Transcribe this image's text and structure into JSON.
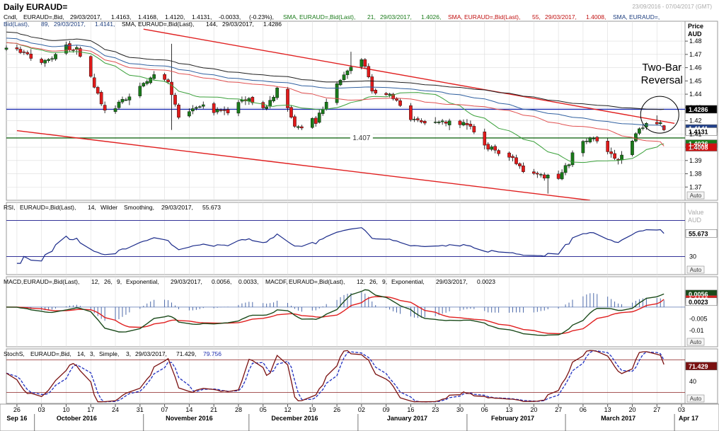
{
  "window": {
    "title": "Daily EURAUD=",
    "date_range": "23/09/2016 - 07/04/2017 (GMT)"
  },
  "colors": {
    "background": "#ffffff",
    "grid": "#dcdcdc",
    "candle_up": "#1a7a1a",
    "candle_down": "#e01a1a",
    "sma21": "#3aa03a",
    "sma55": "#e05050",
    "sma89": "#3060a0",
    "sma144": "#202020",
    "trend_red": "#e02020",
    "level_blue": "#1f2fb0",
    "level_green": "#1a6a1a",
    "rsi": "#1a2a8a",
    "macd": "#1a4a1a",
    "signal": "#e02020",
    "hist": "#3a5aa0",
    "stoch_k": "#7a1010",
    "stoch_d": "#2030c0"
  },
  "chart_data": [
    {
      "type": "candlestick",
      "panel": "price",
      "legend": [
        {
          "text": "Cndl, EURAUD=, Bid, 29/03/2017, 1.4163, 1.4168, 1.4120, 1.4131, -0.0033, (-0.23%),",
          "color": "#000000"
        },
        {
          "text": "SMA, EURAUD=, Bid(Last), 21, 29/03/2017, 1.4026,",
          "color": "#1a7a1a"
        },
        {
          "text": "SMA, EURAUD=, Bid(Last), 55, 29/03/2017, 1.4008,",
          "color": "#c01010"
        },
        {
          "text": "SMA, EURAUD=, Bid(Last), 89, 29/03/2017, 1.4141,",
          "color": "#204080"
        },
        {
          "text": "SMA, EURAUD=, Bid(Last), 144, 29/03/2017, 1.4286",
          "color": "#000000"
        }
      ],
      "y_axis_title": [
        "Price",
        "AUD"
      ],
      "ylim": [
        1.36,
        1.495
      ],
      "y_ticks": [
        1.37,
        1.38,
        1.39,
        1.4,
        1.41,
        1.42,
        1.43,
        1.44,
        1.45,
        1.46,
        1.47,
        1.48
      ],
      "y_tick_labels": [
        "1.37",
        "1.38",
        "1.39",
        "1.40",
        "1.41",
        "1.42",
        "1.43",
        "1.44",
        "1.45",
        "1.46",
        "1.47",
        "1.48"
      ],
      "horizontal_levels": [
        {
          "name": "resistance",
          "value": 1.4286,
          "color": "#1f2fb0"
        },
        {
          "name": "support",
          "value": 1.407,
          "color": "#1a6a1a",
          "label": "1.407",
          "label_date": "2017-01-02"
        }
      ],
      "trendlines": [
        {
          "name": "upper-channel",
          "from": [
            "2016-11-01",
            1.489
          ],
          "to": [
            "2017-04-01",
            1.418
          ],
          "color": "#e02020"
        },
        {
          "name": "lower-channel",
          "from": [
            "2016-09-26",
            1.4125
          ],
          "to": [
            "2017-03-08",
            1.36
          ],
          "color": "#e02020"
        }
      ],
      "value_badges": [
        {
          "text": "1.4286",
          "value": 1.4286,
          "bg": "#000000",
          "fg": "#ffffff"
        },
        {
          "text": "1.4141",
          "value": 1.4141,
          "bg": "#20408a",
          "fg": "#ffffff"
        },
        {
          "text": "1.4131",
          "value": 1.4131,
          "bg": "#ffffff",
          "fg": "#000000"
        },
        {
          "text": "1.4026",
          "value": 1.4026,
          "bg": "#1a7a1a",
          "fg": "#ffffff"
        },
        {
          "text": "1.4008",
          "value": 1.4008,
          "bg": "#d01010",
          "fg": "#ffffff"
        }
      ],
      "annotation": {
        "lines": [
          "Two-Bar",
          "Reversal"
        ],
        "date": "2017-03-27",
        "value": 1.4245
      },
      "anchors": [
        [
          "2016-09-26",
          1.473
        ],
        [
          "2016-10-03",
          1.462
        ],
        [
          "2016-10-10",
          1.476
        ],
        [
          "2016-10-14",
          1.47
        ],
        [
          "2016-10-21",
          1.428
        ],
        [
          "2016-10-28",
          1.438
        ],
        [
          "2016-11-04",
          1.456
        ],
        [
          "2016-11-08",
          1.448
        ],
        [
          "2016-11-11",
          1.423
        ],
        [
          "2016-11-17",
          1.432
        ],
        [
          "2016-11-23",
          1.425
        ],
        [
          "2016-11-29",
          1.436
        ],
        [
          "2016-12-06",
          1.43
        ],
        [
          "2016-12-09",
          1.442
        ],
        [
          "2016-12-15",
          1.415
        ],
        [
          "2016-12-20",
          1.42
        ],
        [
          "2016-12-27",
          1.452
        ],
        [
          "2017-01-02",
          1.465
        ],
        [
          "2017-01-06",
          1.437
        ],
        [
          "2017-01-10",
          1.44
        ],
        [
          "2017-01-16",
          1.42
        ],
        [
          "2017-01-24",
          1.418
        ],
        [
          "2017-01-31",
          1.42
        ],
        [
          "2017-02-06",
          1.401
        ],
        [
          "2017-02-13",
          1.393
        ],
        [
          "2017-02-17",
          1.383
        ],
        [
          "2017-02-22",
          1.379
        ],
        [
          "2017-02-27",
          1.378
        ],
        [
          "2017-03-03",
          1.394
        ],
        [
          "2017-03-08",
          1.409
        ],
        [
          "2017-03-13",
          1.397
        ],
        [
          "2017-03-17",
          1.392
        ],
        [
          "2017-03-22",
          1.414
        ],
        [
          "2017-03-27",
          1.418
        ],
        [
          "2017-03-29",
          1.4131
        ]
      ],
      "last_candle": {
        "date": "2017-03-29",
        "open": 1.4163,
        "high": 1.4168,
        "low": 1.412,
        "close": 1.4131
      },
      "sma": [
        {
          "name": "SMA 21",
          "period": 21,
          "color": "#3aa03a",
          "last": 1.4026
        },
        {
          "name": "SMA 55",
          "period": 55,
          "color": "#e05050",
          "last": 1.4008
        },
        {
          "name": "SMA 89",
          "period": 89,
          "color": "#3060a0",
          "last": 1.4141
        },
        {
          "name": "SMA 144",
          "period": 144,
          "color": "#202020",
          "last": 1.4286
        }
      ]
    },
    {
      "type": "line",
      "panel": "rsi",
      "legend": [
        {
          "text": "RSI, EURAUD=, Bid(Last), 14, Wilder Smoothing, 29/03/2017, 55.673",
          "color": "#000000"
        }
      ],
      "y_axis_title": [
        "Value",
        "AUD"
      ],
      "ylim": [
        10,
        90
      ],
      "y_ticks": [
        30
      ],
      "y_tick_labels": [
        "30"
      ],
      "bands": [
        30,
        70
      ],
      "last": 55.673,
      "badge": {
        "text": "55.673",
        "bg": "#ffffff",
        "fg": "#000000"
      }
    },
    {
      "type": "line",
      "panel": "macd",
      "legend": [
        {
          "text": "MACD, EURAUD=, Bid(Last), 12, 26, 9, Exponential, 29/03/2017, 0.0056, 0.0033, MACDF, EURAUD=, Bid(Last), 12, 26, 9, Exponential, 29/03/2017, 0.0023",
          "color": "#000000"
        }
      ],
      "ylim": [
        -0.017,
        0.013
      ],
      "y_ticks": [
        -0.005,
        -0.01
      ],
      "y_tick_labels": [
        "-0.005",
        "-0.01"
      ],
      "series": [
        {
          "name": "MACD",
          "color": "#1a4a1a",
          "last": 0.0056
        },
        {
          "name": "Signal",
          "color": "#e02020",
          "last": 0.0033
        },
        {
          "name": "MACDF",
          "color": "#3a5aa0",
          "last": 0.0023
        }
      ],
      "badges": [
        {
          "text": "0.0056",
          "value": 0.0056,
          "bg": "#1a4a1a",
          "fg": "#ffffff"
        },
        {
          "text": "0.0033",
          "value": 0.0033,
          "bg": "#e02020",
          "fg": "#ffffff"
        },
        {
          "text": "0.0023",
          "value": 0.0023,
          "bg": "#ffffff",
          "fg": "#000000"
        }
      ]
    },
    {
      "type": "line",
      "panel": "stochs",
      "legend": [
        {
          "text": "StochS, EURAUD=, Bid, 14, 3, Simple, 3, 29/03/2017, 71.429,",
          "color": "#000000"
        },
        {
          "text": "79.756",
          "color": "#1f2fb0"
        }
      ],
      "ylim": [
        0,
        100
      ],
      "y_ticks": [
        40
      ],
      "y_tick_labels": [
        "40"
      ],
      "bands": [
        20,
        80
      ],
      "series": [
        {
          "name": "%K",
          "color": "#7a1010",
          "last": 71.429
        },
        {
          "name": "%D",
          "color": "#2030c0",
          "last": 79.756
        }
      ],
      "badge": {
        "text": "71.429",
        "bg": "#7a1010",
        "fg": "#ffffff"
      }
    }
  ],
  "x_axis": {
    "start_date": "2016-09-23",
    "end_date": "2017-04-04",
    "ticks": [
      {
        "date": "2016-09-26",
        "label": "26"
      },
      {
        "date": "2016-10-03",
        "label": "03"
      },
      {
        "date": "2016-10-10",
        "label": "10"
      },
      {
        "date": "2016-10-17",
        "label": "17"
      },
      {
        "date": "2016-10-24",
        "label": "24"
      },
      {
        "date": "2016-10-31",
        "label": "31"
      },
      {
        "date": "2016-11-07",
        "label": "07"
      },
      {
        "date": "2016-11-14",
        "label": "14"
      },
      {
        "date": "2016-11-21",
        "label": "21"
      },
      {
        "date": "2016-11-28",
        "label": "28"
      },
      {
        "date": "2016-12-05",
        "label": "05"
      },
      {
        "date": "2016-12-12",
        "label": "12"
      },
      {
        "date": "2016-12-19",
        "label": "19"
      },
      {
        "date": "2016-12-26",
        "label": "26"
      },
      {
        "date": "2017-01-02",
        "label": "02"
      },
      {
        "date": "2017-01-09",
        "label": "09"
      },
      {
        "date": "2017-01-16",
        "label": "16"
      },
      {
        "date": "2017-01-23",
        "label": "23"
      },
      {
        "date": "2017-01-30",
        "label": "30"
      },
      {
        "date": "2017-02-06",
        "label": "06"
      },
      {
        "date": "2017-02-13",
        "label": "13"
      },
      {
        "date": "2017-02-20",
        "label": "20"
      },
      {
        "date": "2017-02-27",
        "label": "27"
      },
      {
        "date": "2017-03-06",
        "label": "06"
      },
      {
        "date": "2017-03-13",
        "label": "13"
      },
      {
        "date": "2017-03-20",
        "label": "20"
      },
      {
        "date": "2017-03-27",
        "label": "27"
      },
      {
        "date": "2017-04-03",
        "label": "03"
      }
    ],
    "months": [
      {
        "date": "2016-09-26",
        "label": "Sep 16"
      },
      {
        "date": "2016-10-13",
        "label": "October 2016"
      },
      {
        "date": "2016-11-14",
        "label": "November 2016"
      },
      {
        "date": "2016-12-14",
        "label": "December 2016"
      },
      {
        "date": "2017-01-15",
        "label": "January 2017"
      },
      {
        "date": "2017-02-14",
        "label": "February 2017"
      },
      {
        "date": "2017-03-16",
        "label": "March 2017"
      },
      {
        "date": "2017-04-05",
        "label": "Apr 17"
      }
    ]
  },
  "auto_label": "Auto"
}
